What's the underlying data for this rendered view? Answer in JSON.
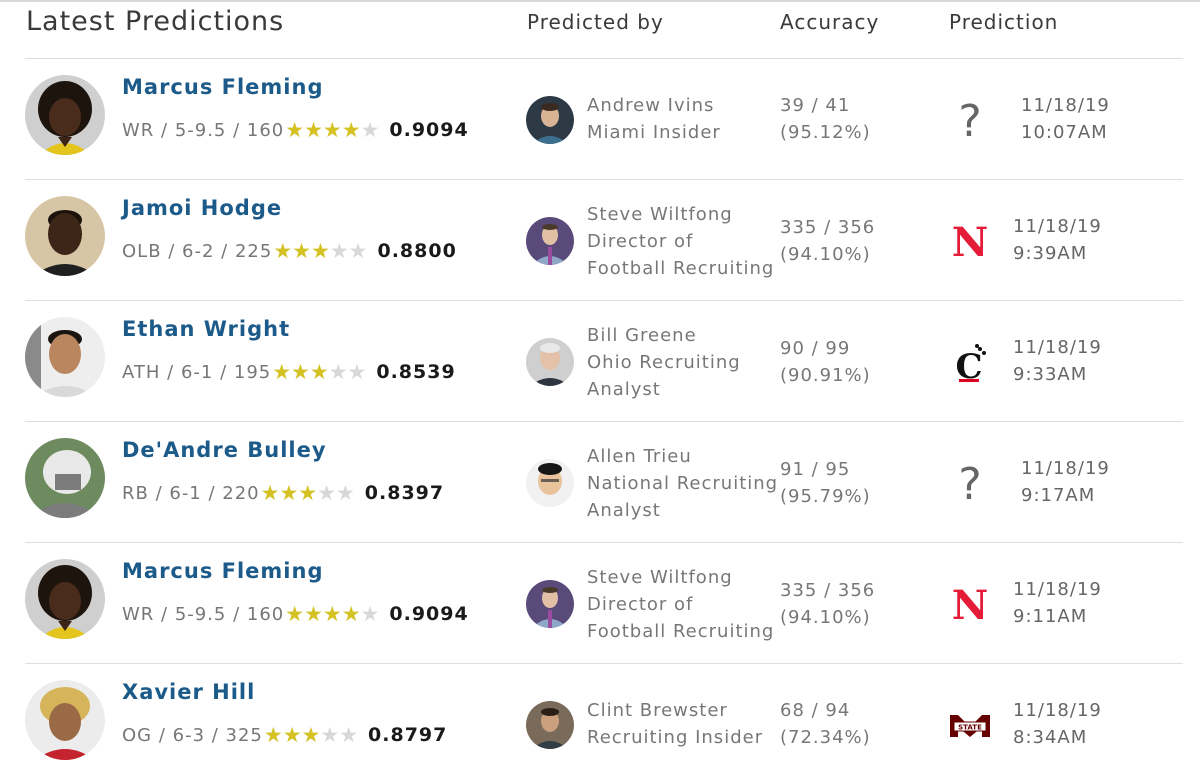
{
  "header": {
    "title": "Latest Predictions",
    "col_predicted_by": "Predicted by",
    "col_accuracy": "Accuracy",
    "col_prediction": "Prediction"
  },
  "colors": {
    "name_blue": "#1c5a8a",
    "star_gold": "#d4c225",
    "star_gray": "#d8d8d8",
    "nebraska_red": "#e41c38",
    "cincinnati_red": "#e00122",
    "msstate_maroon": "#660000"
  },
  "rows": [
    {
      "player": "Marcus Fleming",
      "info": "WR / 5-9.5 / 160",
      "stars": 4,
      "rating": "0.9094",
      "predictor_line1": "Andrew Ivins",
      "predictor_line2": "Miami Insider",
      "predictor_line3": "",
      "accuracy_count": "39 / 41",
      "accuracy_pct": "(95.12%)",
      "pick_icon": "question-mark",
      "date": "11/18/19",
      "time": "10:07AM"
    },
    {
      "player": "Jamoi Hodge",
      "info": "OLB / 6-2 / 225",
      "stars": 3,
      "rating": "0.8800",
      "predictor_line1": "Steve Wiltfong",
      "predictor_line2": "Director of",
      "predictor_line3": "Football Recruiting",
      "accuracy_count": "335 / 356",
      "accuracy_pct": "(94.10%)",
      "pick_icon": "nebraska-logo",
      "pick_text": "N",
      "date": "11/18/19",
      "time": "9:39AM"
    },
    {
      "player": "Ethan Wright",
      "info": "ATH / 6-1 / 195",
      "stars": 3,
      "rating": "0.8539",
      "predictor_line1": "Bill Greene",
      "predictor_line2": "Ohio Recruiting",
      "predictor_line3": "Analyst",
      "accuracy_count": "90 / 99",
      "accuracy_pct": "(90.91%)",
      "pick_icon": "cincinnati-logo",
      "pick_text": "C",
      "date": "11/18/19",
      "time": "9:33AM"
    },
    {
      "player": "De'Andre Bulley",
      "info": "RB / 6-1 / 220",
      "stars": 3,
      "rating": "0.8397",
      "predictor_line1": "Allen Trieu",
      "predictor_line2": "National Recruiting",
      "predictor_line3": "Analyst",
      "accuracy_count": "91 / 95",
      "accuracy_pct": "(95.79%)",
      "pick_icon": "question-mark",
      "date": "11/18/19",
      "time": "9:17AM"
    },
    {
      "player": "Marcus Fleming",
      "info": "WR / 5-9.5 / 160",
      "stars": 4,
      "rating": "0.9094",
      "predictor_line1": "Steve Wiltfong",
      "predictor_line2": "Director of",
      "predictor_line3": "Football Recruiting",
      "accuracy_count": "335 / 356",
      "accuracy_pct": "(94.10%)",
      "pick_icon": "nebraska-logo",
      "pick_text": "N",
      "date": "11/18/19",
      "time": "9:11AM"
    },
    {
      "player": "Xavier Hill",
      "info": "OG / 6-3 / 325",
      "stars": 3,
      "rating": "0.8797",
      "predictor_line1": "Clint Brewster",
      "predictor_line2": "Recruiting Insider",
      "predictor_line3": "",
      "accuracy_count": "68 / 94",
      "accuracy_pct": "(72.34%)",
      "pick_icon": "mississippi-state-logo",
      "pick_text": "STATE",
      "date": "11/18/19",
      "time": "8:34AM"
    }
  ]
}
